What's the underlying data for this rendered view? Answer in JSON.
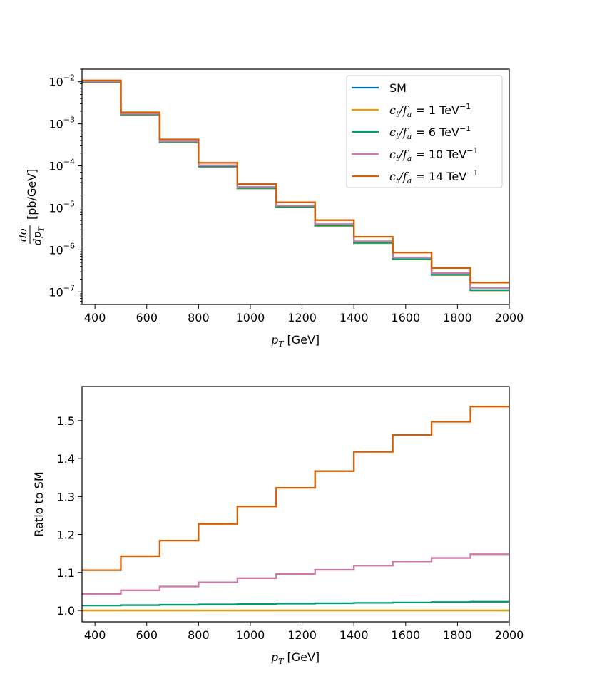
{
  "chart_data": [
    {
      "type": "line",
      "style": "step",
      "yscale": "log",
      "x_edges": [
        350,
        500,
        650,
        800,
        950,
        1100,
        1250,
        1400,
        1550,
        1700,
        1850,
        2000
      ],
      "xlim": [
        350,
        2000
      ],
      "ylim": [
        5e-08,
        0.02
      ],
      "xticks": [
        "400",
        "600",
        "800",
        "1000",
        "1200",
        "1400",
        "1600",
        "1800",
        "2000"
      ],
      "yticks": [
        {
          "base": "10",
          "exp": "−2",
          "value": 0.01
        },
        {
          "base": "10",
          "exp": "−3",
          "value": 0.001
        },
        {
          "base": "10",
          "exp": "−4",
          "value": 0.0001
        },
        {
          "base": "10",
          "exp": "−5",
          "value": 1e-05
        },
        {
          "base": "10",
          "exp": "−6",
          "value": 1e-06
        },
        {
          "base": "10",
          "exp": "−7",
          "value": 1e-07
        }
      ],
      "xlabel": {
        "main": "p",
        "sub": "T",
        "unit": " [GeV]"
      },
      "ylabel": {
        "num": "dσ",
        "den_main": "dp",
        "den_sub": "T",
        "unit": "[pb/GeV]"
      },
      "legend_position": "top-right",
      "series": [
        {
          "name": "SM",
          "color": "#0072b2",
          "values": [
            0.0098,
            0.00165,
            0.00036,
            9.6e-05,
            2.9e-05,
            1.03e-05,
            3.7e-06,
            1.44e-06,
            5.9e-07,
            2.5e-07,
            1.08e-07
          ]
        },
        {
          "name": "c_t/f_a = 1 TeV^-1",
          "color": "#e69f00",
          "values": [
            0.0098,
            0.00165,
            0.00036,
            9.6e-05,
            2.9e-05,
            1.03e-05,
            3.7e-06,
            1.44e-06,
            5.9e-07,
            2.5e-07,
            1.08e-07
          ]
        },
        {
          "name": "c_t/f_a = 6 TeV^-1",
          "color": "#009e73",
          "values": [
            0.0099,
            0.00167,
            0.000365,
            9.7e-05,
            2.95e-05,
            1.05e-05,
            3.8e-06,
            1.47e-06,
            6e-07,
            2.55e-07,
            1.1e-07
          ]
        },
        {
          "name": "c_t/f_a = 10 TeV^-1",
          "color": "#cc79a7",
          "values": [
            0.0102,
            0.00174,
            0.000383,
            0.000103,
            3.14e-05,
            1.13e-05,
            4.1e-06,
            1.6e-06,
            6.6e-07,
            2.8e-07,
            1.24e-07
          ]
        },
        {
          "name": "c_t/f_a = 14 TeV^-1",
          "color": "#d55e00",
          "values": [
            0.0108,
            0.00188,
            0.000426,
            0.000118,
            3.69e-05,
            1.36e-05,
            5.1e-06,
            2.04e-06,
            8.6e-07,
            3.7e-07,
            1.66e-07
          ]
        }
      ]
    },
    {
      "type": "line",
      "style": "step",
      "x_edges": [
        350,
        500,
        650,
        800,
        950,
        1100,
        1250,
        1400,
        1550,
        1700,
        1850,
        2000
      ],
      "xlim": [
        350,
        2000
      ],
      "ylim": [
        0.97,
        1.59
      ],
      "xticks": [
        "400",
        "600",
        "800",
        "1000",
        "1200",
        "1400",
        "1600",
        "1800",
        "2000"
      ],
      "yticks": [
        "1.0",
        "1.1",
        "1.2",
        "1.3",
        "1.4",
        "1.5"
      ],
      "xlabel": {
        "main": "p",
        "sub": "T",
        "unit": " [GeV]"
      },
      "ylabel": "Ratio to SM",
      "series": [
        {
          "color": "#0072b2",
          "values": [
            1.0,
            1.0,
            1.0,
            1.0,
            1.0,
            1.0,
            1.0,
            1.0,
            1.0,
            1.0,
            1.0
          ]
        },
        {
          "color": "#e69f00",
          "values": [
            1.0,
            1.0,
            1.0,
            1.0,
            1.0,
            1.0,
            1.0,
            1.0,
            1.0,
            1.0,
            1.0
          ]
        },
        {
          "color": "#009e73",
          "values": [
            1.013,
            1.014,
            1.015,
            1.016,
            1.017,
            1.018,
            1.019,
            1.02,
            1.021,
            1.022,
            1.023
          ]
        },
        {
          "color": "#cc79a7",
          "values": [
            1.043,
            1.053,
            1.063,
            1.074,
            1.085,
            1.096,
            1.107,
            1.118,
            1.129,
            1.138,
            1.148
          ]
        },
        {
          "color": "#d55e00",
          "values": [
            1.106,
            1.143,
            1.184,
            1.228,
            1.274,
            1.323,
            1.367,
            1.418,
            1.462,
            1.497,
            1.537
          ]
        }
      ]
    }
  ]
}
